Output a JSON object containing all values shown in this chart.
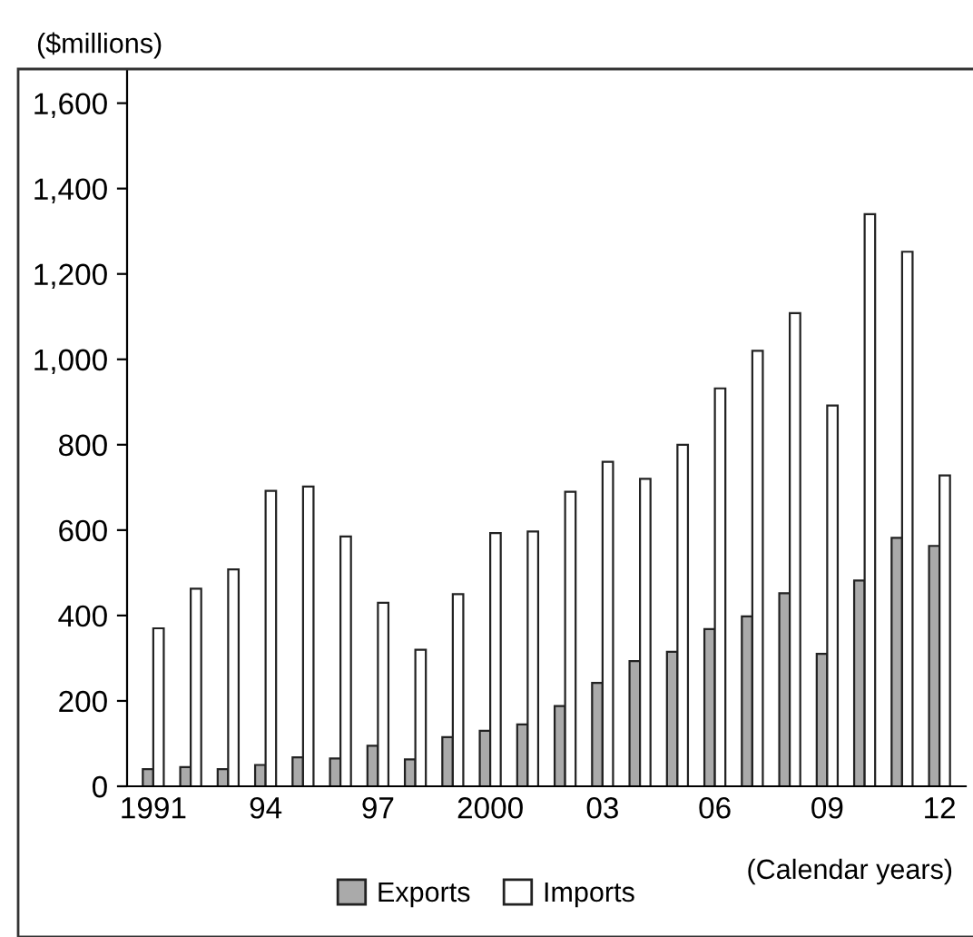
{
  "chart_data": {
    "type": "bar",
    "ylabel": "($millions)",
    "xlabel": "(Calendar years)",
    "categories": [
      "1991",
      null,
      null,
      "94",
      null,
      null,
      "97",
      null,
      null,
      "2000",
      null,
      null,
      "03",
      null,
      null,
      "06",
      null,
      null,
      "09",
      null,
      null,
      "12"
    ],
    "series": [
      {
        "name": "Exports",
        "color": "#aaaaaa",
        "values": [
          40,
          45,
          40,
          50,
          68,
          65,
          95,
          63,
          115,
          130,
          145,
          188,
          242,
          293,
          315,
          368,
          398,
          452,
          310,
          482,
          582,
          563
        ]
      },
      {
        "name": "Imports",
        "color": "#ffffff",
        "values": [
          370,
          463,
          508,
          692,
          702,
          585,
          430,
          320,
          450,
          593,
          597,
          690,
          760,
          720,
          800,
          932,
          1020,
          1108,
          892,
          1340,
          1252,
          728
        ]
      }
    ],
    "ylim": [
      0,
      1680
    ],
    "yticks": [
      0,
      200,
      400,
      600,
      800,
      {
        "value": 1000,
        "label": "1,000"
      },
      {
        "value": 1200,
        "label": "1,200"
      },
      {
        "value": 1400,
        "label": "1,400"
      },
      {
        "value": 1600,
        "label": "1,600"
      }
    ],
    "grid": false,
    "legend": "bottom"
  }
}
